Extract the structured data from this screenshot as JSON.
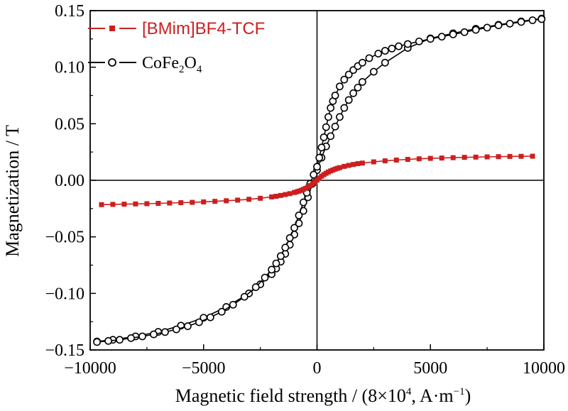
{
  "chart_data": {
    "type": "line",
    "xlabel": {
      "text": "Magnetic field strength / (8×10",
      "sup1": "4",
      "mid": ", A·m",
      "sup2": "−1",
      "end": ")"
    },
    "ylabel": "Magnetization / T",
    "xlim": [
      -10000,
      10000
    ],
    "ylim": [
      -0.15,
      0.15
    ],
    "xticks": [
      -10000,
      -5000,
      0,
      5000,
      10000
    ],
    "xtick_labels": [
      "−10000",
      "−5000",
      "0",
      "5000",
      "10000"
    ],
    "yticks": [
      0.15,
      0.1,
      0.05,
      0.0,
      -0.05,
      -0.1,
      -0.15
    ],
    "ytick_labels": [
      "0.15",
      "0.10",
      "0.05",
      "0.00",
      "−0.05",
      "−0.10",
      "−0.15"
    ],
    "grid": false,
    "zero_lines": true,
    "legend_position": "top-left",
    "series": [
      {
        "name": "[BMim]BF4-TCF",
        "color": "#cc1f1f",
        "marker": "filled-square",
        "x": [
          -9500,
          -9000,
          -8500,
          -8000,
          -7500,
          -7000,
          -6500,
          -6000,
          -5500,
          -5000,
          -4500,
          -4000,
          -3500,
          -3000,
          -2500,
          -2000,
          -1800,
          -1600,
          -1400,
          -1200,
          -1000,
          -900,
          -800,
          -700,
          -600,
          -500,
          -400,
          -300,
          -200,
          -100,
          0,
          100,
          200,
          300,
          400,
          500,
          600,
          700,
          800,
          900,
          1000,
          1200,
          1400,
          1600,
          1800,
          2000,
          2500,
          3000,
          3500,
          4000,
          4500,
          5000,
          5500,
          6000,
          6500,
          7000,
          7500,
          8000,
          8500,
          9000,
          9500
        ],
        "y": [
          -0.0215,
          -0.0213,
          -0.0211,
          -0.0209,
          -0.0207,
          -0.0204,
          -0.0201,
          -0.0198,
          -0.0195,
          -0.0191,
          -0.0186,
          -0.0181,
          -0.0175,
          -0.0168,
          -0.0159,
          -0.0147,
          -0.0141,
          -0.0134,
          -0.0126,
          -0.0118,
          -0.0108,
          -0.0102,
          -0.0096,
          -0.0089,
          -0.008,
          -0.0071,
          -0.006,
          -0.0047,
          -0.0033,
          -0.0017,
          0.0002,
          0.002,
          0.0036,
          0.005,
          0.0062,
          0.0073,
          0.0083,
          0.0091,
          0.0099,
          0.0106,
          0.0112,
          0.0123,
          0.0132,
          0.014,
          0.0147,
          0.0152,
          0.0163,
          0.0172,
          0.0179,
          0.0185,
          0.019,
          0.0194,
          0.0197,
          0.02,
          0.0203,
          0.0205,
          0.0207,
          0.0209,
          0.0211,
          0.0212,
          0.0213
        ]
      },
      {
        "name": "CoFe2O4",
        "legend_text": {
          "base": "CoFe",
          "sub1": "2",
          "mid": "O",
          "sub2": "4"
        },
        "color": "#000000",
        "marker": "open-circle",
        "x": [
          -9700,
          -9200,
          -8700,
          -8200,
          -7700,
          -7200,
          -6700,
          -6200,
          -5700,
          -5200,
          -4700,
          -4200,
          -3700,
          -3200,
          -2700,
          -2300,
          -2000,
          -1800,
          -1600,
          -1400,
          -1200,
          -1000,
          -800,
          -600,
          -450,
          -300,
          -150,
          0,
          100,
          200,
          300,
          400,
          500,
          600,
          700,
          800,
          1000,
          1200,
          1400,
          1600,
          1800,
          2000,
          2300,
          2700,
          3000,
          3300,
          3600,
          4000,
          4500,
          5000,
          5500,
          6000,
          6500,
          7000,
          7500,
          8000,
          8500,
          9000,
          9500,
          9900
        ],
        "y": [
          -0.143,
          -0.142,
          -0.141,
          -0.1395,
          -0.138,
          -0.1362,
          -0.1342,
          -0.1318,
          -0.129,
          -0.1255,
          -0.1212,
          -0.1162,
          -0.11,
          -0.103,
          -0.0945,
          -0.086,
          -0.079,
          -0.0735,
          -0.067,
          -0.0595,
          -0.051,
          -0.042,
          -0.031,
          -0.0195,
          -0.011,
          -0.003,
          0.005,
          0.012,
          0.02,
          0.029,
          0.038,
          0.047,
          0.056,
          0.064,
          0.07,
          0.075,
          0.083,
          0.089,
          0.0935,
          0.0975,
          0.101,
          0.104,
          0.108,
          0.112,
          0.1145,
          0.1165,
          0.1185,
          0.1205,
          0.1228,
          0.125,
          0.127,
          0.129,
          0.131,
          0.133,
          0.135,
          0.137,
          0.1385,
          0.14,
          0.1415,
          0.1425
        ]
      },
      {
        "name": "CoFe2O4",
        "color": "#000000",
        "marker": "open-circle",
        "x": [
          -9700,
          -9000,
          -8000,
          -7000,
          -6000,
          -5000,
          -4000,
          -3000,
          -2500,
          -2000,
          -1800,
          -1600,
          -1400,
          -1200,
          -1000,
          -800,
          -600,
          -400,
          -200,
          0,
          200,
          400,
          600,
          800,
          1000,
          1200,
          1400,
          1600,
          1800,
          2000,
          2500,
          3000,
          4000,
          5000,
          6000,
          7000,
          8000,
          9000,
          9900
        ],
        "y": [
          -0.1425,
          -0.141,
          -0.138,
          -0.134,
          -0.1285,
          -0.1215,
          -0.112,
          -0.1,
          -0.092,
          -0.083,
          -0.078,
          -0.072,
          -0.065,
          -0.057,
          -0.048,
          -0.038,
          -0.027,
          -0.015,
          -0.003,
          0.009,
          0.02,
          0.03,
          0.039,
          0.0475,
          0.056,
          0.064,
          0.071,
          0.077,
          0.082,
          0.087,
          0.096,
          0.104,
          0.117,
          0.1255,
          0.13,
          0.134,
          0.1375,
          0.1405,
          0.143
        ]
      }
    ]
  }
}
